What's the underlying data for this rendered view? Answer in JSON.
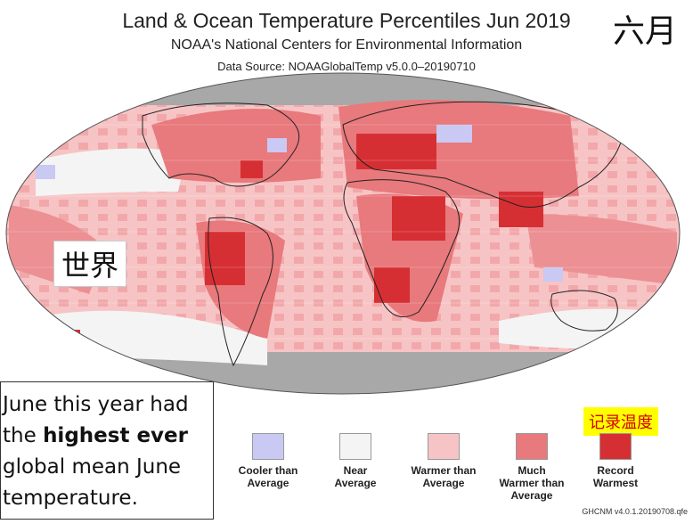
{
  "header": {
    "title": "Land & Ocean Temperature Percentiles Jun 2019",
    "subtitle": "NOAA's National Centers for Environmental Information",
    "source": "Data Source: NOAAGlobalTemp v5.0.0–20190710"
  },
  "labels": {
    "month": "六月",
    "world": "世界",
    "record": "记录温度"
  },
  "note": {
    "line1": "June this year had",
    "line2_pre": "the ",
    "line2_bold": "highest ever",
    "line3": "global mean June",
    "line4": "temperature."
  },
  "legend": [
    {
      "line1": "Cooler than",
      "line2": "Average",
      "line3": "",
      "color": "#c9c9f3"
    },
    {
      "line1": "Near",
      "line2": "Average",
      "line3": "",
      "color": "#f4f4f4"
    },
    {
      "line1": "Warmer than",
      "line2": "Average",
      "line3": "",
      "color": "#f7c4c5"
    },
    {
      "line1": "Much",
      "line2": "Warmer than",
      "line3": "Average",
      "color": "#e8797c"
    },
    {
      "line1": "Record",
      "line2": "Warmest",
      "line3": "",
      "color": "#d62f33"
    }
  ],
  "footer": "GHCNM v4.0.1.20190708.qfe",
  "colors": {
    "no_data": "#a8a8a8",
    "near": "#f4f4f4",
    "cooler": "#c9c9f3",
    "warmer": "#f7c4c5",
    "much_warmer": "#e8797c",
    "record": "#d62f33",
    "land_outline": "#222222"
  }
}
